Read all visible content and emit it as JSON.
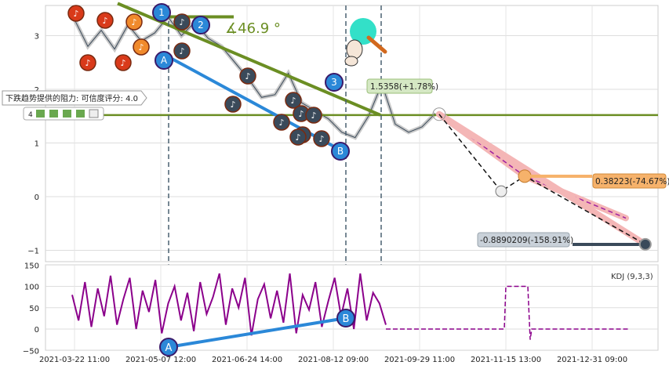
{
  "chart_data": [
    {
      "type": "line",
      "panel": "price",
      "x_dates": [
        "2021-03-22",
        "2021-03-29",
        "2021-04-05",
        "2021-04-12",
        "2021-04-19",
        "2021-04-26",
        "2021-05-03",
        "2021-05-10",
        "2021-05-17",
        "2021-05-24",
        "2021-05-31",
        "2021-06-07",
        "2021-06-14",
        "2021-06-21",
        "2021-06-28",
        "2021-07-05",
        "2021-07-12",
        "2021-07-19",
        "2021-07-26",
        "2021-08-02",
        "2021-08-09",
        "2021-08-16",
        "2021-08-23",
        "2021-08-30",
        "2021-09-06",
        "2021-09-13",
        "2021-09-20",
        "2021-09-27"
      ],
      "series": [
        {
          "name": "",
          "values": [
            3.3,
            2.8,
            3.1,
            2.75,
            3.2,
            2.9,
            3.05,
            3.35,
            3.0,
            3.25,
            2.95,
            2.8,
            2.5,
            2.2,
            1.85,
            1.9,
            2.3,
            1.75,
            1.6,
            1.45,
            1.2,
            1.1,
            1.5,
            2.1,
            1.35,
            1.2,
            1.3,
            1.55
          ]
        }
      ],
      "x_tick_labels": [
        "2021-03-22 11:00",
        "2021-05-07 12:00",
        "2021-06-24 14:00",
        "2021-08-12 09:00",
        "2021-09-29 11:00",
        "2021-11-15 13:00",
        "2021-12-31 09:00"
      ],
      "y_tick_labels": [
        "3",
        "2",
        "1",
        "0",
        "−1"
      ],
      "ylim": [
        -1.2,
        3.55
      ],
      "annotations": {
        "angle_label": "∡46.9 °",
        "current_price": "1.5358(+1.78%)",
        "upper_target": "0.38223(-74.67%)",
        "lower_target": "-0.8890209(-158.91%)",
        "resistance_tooltip": "下跌趋势提供的阻力: 可信度评分: 4.0",
        "rating_count": "4",
        "resistance_level": 1.52,
        "wave_labels": [
          "1",
          "2",
          "3",
          "A",
          "B"
        ]
      },
      "projections": [
        {
          "from_date": "2021-09-29",
          "from": 1.5358,
          "to_date": "2021-11-15",
          "to": 0.1,
          "then_date": "2021-11-24",
          "then": 0.38223,
          "end_date": "2022-01-15",
          "end": -0.8890209
        }
      ],
      "grid": true
    },
    {
      "type": "line",
      "panel": "indicator",
      "legend": "KDJ (9,3,3)",
      "y_tick_labels": [
        "150",
        "100",
        "50",
        "0",
        "−50"
      ],
      "ylim": [
        -50,
        150
      ],
      "series": [
        {
          "name": "",
          "values": [
            80,
            20,
            110,
            5,
            95,
            30,
            125,
            10,
            70,
            120,
            0,
            90,
            40,
            115,
            -10,
            60,
            100,
            20,
            85,
            -5,
            110,
            35,
            75,
            130,
            10,
            95,
            50,
            120,
            -15,
            70,
            105,
            25,
            90,
            15,
            130,
            -10,
            80,
            45,
            110,
            5,
            65,
            120,
            30,
            95,
            0,
            130,
            20,
            85,
            60,
            10
          ]
        }
      ],
      "flat_value": 0,
      "spike": {
        "value": 100
      }
    }
  ]
}
